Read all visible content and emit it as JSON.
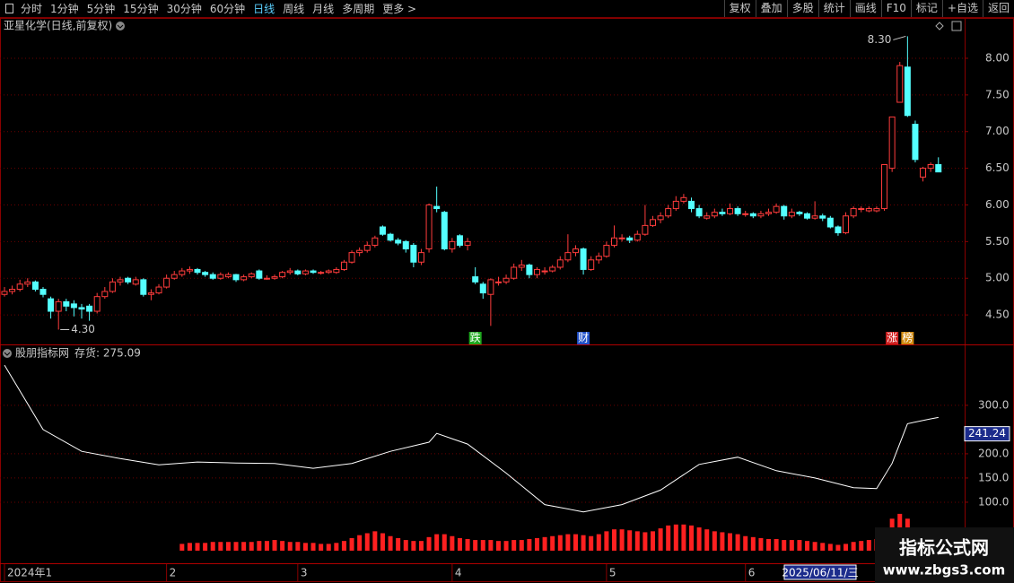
{
  "toolbar": {
    "left": [
      "分时",
      "1分钟",
      "5分钟",
      "15分钟",
      "30分钟",
      "60分钟",
      "日线",
      "周线",
      "月线",
      "多周期",
      "更多 >"
    ],
    "active_index": 6,
    "right": [
      "复权",
      "叠加",
      "多股",
      "统计",
      "画线",
      "F10",
      "标记",
      "+自选",
      "返回"
    ]
  },
  "chart_data": [
    {
      "type": "candlestick",
      "title": "亚星化学(日线,前复权)",
      "up_color": "#ff3c3c",
      "down_color": "#54ffff",
      "candles": [
        [
          4.78,
          4.88,
          4.75,
          4.82
        ],
        [
          4.82,
          4.9,
          4.78,
          4.85
        ],
        [
          4.85,
          4.98,
          4.82,
          4.92
        ],
        [
          4.92,
          5.0,
          4.88,
          4.95
        ],
        [
          4.95,
          4.97,
          4.82,
          4.85
        ],
        [
          4.85,
          4.88,
          4.74,
          4.78
        ],
        [
          4.72,
          4.75,
          4.45,
          4.55
        ],
        [
          4.55,
          4.72,
          4.3,
          4.68
        ],
        [
          4.68,
          4.72,
          4.55,
          4.62
        ],
        [
          4.65,
          4.7,
          4.48,
          4.6
        ],
        [
          4.6,
          4.65,
          4.45,
          4.58
        ],
        [
          4.62,
          4.65,
          4.42,
          4.55
        ],
        [
          4.55,
          4.8,
          4.52,
          4.75
        ],
        [
          4.75,
          4.88,
          4.72,
          4.82
        ],
        [
          4.82,
          5.0,
          4.8,
          4.95
        ],
        [
          4.95,
          5.02,
          4.9,
          4.98
        ],
        [
          5.0,
          5.02,
          4.92,
          4.95
        ],
        [
          4.92,
          5.02,
          4.9,
          4.98
        ],
        [
          4.98,
          5.0,
          4.75,
          4.78
        ],
        [
          4.78,
          4.85,
          4.7,
          4.8
        ],
        [
          4.8,
          4.92,
          4.78,
          4.88
        ],
        [
          4.88,
          5.05,
          4.86,
          5.0
        ],
        [
          5.0,
          5.1,
          4.98,
          5.05
        ],
        [
          5.05,
          5.14,
          5.02,
          5.1
        ],
        [
          5.1,
          5.16,
          5.06,
          5.12
        ],
        [
          5.12,
          5.14,
          5.05,
          5.08
        ],
        [
          5.08,
          5.1,
          5.02,
          5.05
        ],
        [
          5.05,
          5.08,
          4.98,
          5.0
        ],
        [
          5.0,
          5.08,
          4.98,
          5.05
        ],
        [
          5.02,
          5.08,
          5.0,
          5.05
        ],
        [
          5.05,
          5.06,
          4.95,
          4.98
        ],
        [
          4.98,
          5.05,
          4.96,
          5.02
        ],
        [
          5.02,
          5.08,
          5.0,
          5.06
        ],
        [
          5.1,
          5.12,
          4.98,
          5.0
        ],
        [
          5.0,
          5.04,
          4.98,
          5.0
        ],
        [
          5.0,
          5.05,
          4.98,
          5.02
        ],
        [
          5.02,
          5.1,
          5.0,
          5.08
        ],
        [
          5.08,
          5.14,
          5.05,
          5.1
        ],
        [
          5.1,
          5.12,
          5.04,
          5.06
        ],
        [
          5.06,
          5.12,
          5.04,
          5.1
        ],
        [
          5.1,
          5.12,
          5.06,
          5.08
        ],
        [
          5.08,
          5.1,
          5.05,
          5.08
        ],
        [
          5.08,
          5.12,
          5.06,
          5.1
        ],
        [
          5.08,
          5.15,
          5.06,
          5.12
        ],
        [
          5.12,
          5.25,
          5.1,
          5.22
        ],
        [
          5.22,
          5.38,
          5.2,
          5.35
        ],
        [
          5.35,
          5.42,
          5.3,
          5.38
        ],
        [
          5.38,
          5.5,
          5.35,
          5.45
        ],
        [
          5.45,
          5.58,
          5.42,
          5.55
        ],
        [
          5.7,
          5.72,
          5.58,
          5.6
        ],
        [
          5.6,
          5.62,
          5.5,
          5.52
        ],
        [
          5.52,
          5.55,
          5.45,
          5.48
        ],
        [
          5.5,
          5.52,
          5.35,
          5.4
        ],
        [
          5.45,
          5.48,
          5.15,
          5.22
        ],
        [
          5.22,
          5.4,
          5.18,
          5.35
        ],
        [
          5.4,
          6.02,
          5.35,
          6.0
        ],
        [
          5.98,
          6.25,
          5.9,
          5.95
        ],
        [
          5.9,
          5.92,
          5.38,
          5.4
        ],
        [
          5.4,
          5.55,
          5.35,
          5.5
        ],
        [
          5.58,
          5.6,
          5.42,
          5.45
        ],
        [
          5.45,
          5.55,
          5.38,
          5.5
        ],
        [
          5.02,
          5.15,
          4.92,
          4.95
        ],
        [
          4.92,
          4.95,
          4.72,
          4.8
        ],
        [
          4.78,
          5.0,
          4.35,
          4.98
        ],
        [
          4.95,
          5.02,
          4.9,
          4.95
        ],
        [
          4.95,
          5.05,
          4.92,
          5.0
        ],
        [
          5.0,
          5.2,
          4.98,
          5.15
        ],
        [
          5.15,
          5.25,
          5.1,
          5.18
        ],
        [
          5.18,
          5.2,
          5.0,
          5.05
        ],
        [
          5.05,
          5.15,
          5.0,
          5.12
        ],
        [
          5.1,
          5.15,
          5.05,
          5.1
        ],
        [
          5.1,
          5.18,
          5.08,
          5.15
        ],
        [
          5.15,
          5.3,
          5.12,
          5.25
        ],
        [
          5.25,
          5.6,
          5.22,
          5.35
        ],
        [
          5.35,
          5.45,
          5.3,
          5.4
        ],
        [
          5.4,
          5.42,
          5.05,
          5.12
        ],
        [
          5.12,
          5.3,
          5.1,
          5.25
        ],
        [
          5.25,
          5.35,
          5.2,
          5.3
        ],
        [
          5.3,
          5.5,
          5.28,
          5.45
        ],
        [
          5.45,
          5.72,
          5.42,
          5.55
        ],
        [
          5.55,
          5.6,
          5.5,
          5.55
        ],
        [
          5.55,
          5.58,
          5.48,
          5.52
        ],
        [
          5.52,
          5.65,
          5.5,
          5.6
        ],
        [
          5.6,
          6.0,
          5.58,
          5.72
        ],
        [
          5.72,
          5.85,
          5.7,
          5.8
        ],
        [
          5.8,
          5.9,
          5.75,
          5.85
        ],
        [
          5.85,
          6.0,
          5.82,
          5.95
        ],
        [
          5.95,
          6.12,
          5.92,
          6.05
        ],
        [
          6.05,
          6.15,
          6.02,
          6.1
        ],
        [
          6.05,
          6.1,
          5.9,
          5.95
        ],
        [
          5.95,
          6.0,
          5.82,
          5.85
        ],
        [
          5.82,
          5.9,
          5.8,
          5.85
        ],
        [
          5.85,
          5.95,
          5.82,
          5.9
        ],
        [
          5.9,
          5.95,
          5.85,
          5.88
        ],
        [
          5.88,
          6.02,
          5.86,
          5.95
        ],
        [
          5.95,
          5.98,
          5.85,
          5.88
        ],
        [
          5.88,
          5.92,
          5.84,
          5.88
        ],
        [
          5.88,
          5.9,
          5.82,
          5.85
        ],
        [
          5.85,
          5.92,
          5.82,
          5.88
        ],
        [
          5.88,
          5.95,
          5.85,
          5.9
        ],
        [
          5.9,
          6.02,
          5.88,
          5.98
        ],
        [
          5.98,
          6.0,
          5.8,
          5.85
        ],
        [
          5.85,
          5.95,
          5.82,
          5.9
        ],
        [
          5.9,
          5.92,
          5.85,
          5.88
        ],
        [
          5.88,
          5.9,
          5.8,
          5.82
        ],
        [
          5.82,
          6.05,
          5.8,
          5.85
        ],
        [
          5.85,
          5.88,
          5.78,
          5.82
        ],
        [
          5.82,
          5.85,
          5.68,
          5.7
        ],
        [
          5.7,
          5.72,
          5.58,
          5.62
        ],
        [
          5.62,
          5.9,
          5.6,
          5.85
        ],
        [
          5.85,
          5.98,
          5.82,
          5.95
        ],
        [
          5.95,
          5.98,
          5.9,
          5.95
        ],
        [
          5.92,
          5.98,
          5.9,
          5.95
        ],
        [
          5.92,
          5.98,
          5.9,
          5.95
        ],
        [
          5.95,
          6.55,
          5.92,
          6.55
        ],
        [
          6.5,
          7.2,
          6.45,
          7.2
        ],
        [
          7.4,
          7.95,
          7.4,
          7.9
        ],
        [
          7.88,
          8.3,
          7.2,
          7.22
        ],
        [
          7.1,
          7.15,
          6.58,
          6.62
        ],
        [
          6.38,
          6.52,
          6.32,
          6.5
        ],
        [
          6.5,
          6.58,
          6.45,
          6.55
        ],
        [
          6.55,
          6.65,
          6.45,
          6.45
        ]
      ],
      "xlim": [
        -0.58,
        124.4
      ],
      "xticks": [
        {
          "value": 0,
          "label": "2024年1"
        },
        {
          "value": 21,
          "label": "2"
        },
        {
          "value": 38,
          "label": "3"
        },
        {
          "value": 58,
          "label": "4"
        },
        {
          "value": 78,
          "label": "5"
        },
        {
          "value": 96,
          "label": "6"
        }
      ],
      "ylim": [
        4.11,
        8.33
      ],
      "yticks": [
        {
          "value": 4.5,
          "label": "4.50"
        },
        {
          "value": 5,
          "label": "5.00"
        },
        {
          "value": 5.5,
          "label": "5.50"
        },
        {
          "value": 6,
          "label": "6.00"
        },
        {
          "value": 6.5,
          "label": "6.50"
        },
        {
          "value": 7,
          "label": "7.00"
        },
        {
          "value": 7.5,
          "label": "7.50"
        },
        {
          "value": 8,
          "label": "8.00"
        }
      ],
      "grid": true,
      "annotations": [
        {
          "x": 7,
          "y": 4.3,
          "label": "4.30"
        },
        {
          "x": 117,
          "y": 8.3,
          "label": "8.30"
        }
      ],
      "markers": [
        {
          "x": 61,
          "label": "跌",
          "color": "#1fa81f"
        },
        {
          "x": 75,
          "label": "财",
          "color": "#2050c8"
        },
        {
          "x": 115,
          "label": "涨",
          "color": "#d02020"
        },
        {
          "x": 117,
          "label": "榜",
          "color": "#d08a10"
        }
      ]
    },
    {
      "type": "line",
      "title": "股朋指标网",
      "legend": "存货: 275.09",
      "line": {
        "color": "#ffffff",
        "x": [
          0,
          5,
          10,
          15,
          20,
          25,
          30,
          35,
          40,
          45,
          50,
          55,
          56,
          60,
          65,
          70,
          75,
          80,
          85,
          90,
          95,
          100,
          105,
          110,
          113,
          115,
          117,
          120,
          121
        ],
        "values": [
          383,
          250,
          205,
          190,
          177,
          183,
          181,
          180,
          170,
          180,
          205,
          224,
          242,
          220,
          160,
          95,
          80,
          95,
          125,
          178,
          193,
          165,
          150,
          130,
          128,
          180,
          262,
          272,
          275.09
        ]
      },
      "bars": {
        "color": "#ff2020",
        "values": [
          null,
          null,
          null,
          null,
          null,
          null,
          null,
          null,
          null,
          null,
          null,
          null,
          null,
          null,
          null,
          null,
          null,
          null,
          null,
          null,
          null,
          null,
          null,
          14,
          16,
          16,
          16,
          18,
          18,
          18,
          18,
          18,
          18,
          20,
          20,
          22,
          20,
          18,
          18,
          16,
          16,
          14,
          14,
          16,
          20,
          26,
          32,
          36,
          40,
          36,
          30,
          26,
          22,
          20,
          20,
          28,
          34,
          34,
          30,
          26,
          24,
          22,
          22,
          22,
          20,
          20,
          22,
          22,
          24,
          26,
          28,
          30,
          32,
          34,
          34,
          32,
          30,
          34,
          40,
          44,
          44,
          42,
          40,
          38,
          40,
          46,
          52,
          54,
          54,
          52,
          48,
          44,
          40,
          38,
          36,
          34,
          30,
          28,
          26,
          24,
          24,
          22,
          22,
          22,
          20,
          18,
          16,
          14,
          12,
          14,
          18,
          20,
          22,
          24,
          44,
          66,
          76,
          66,
          48,
          30,
          18,
          8
        ]
      },
      "ylim": [
        -26,
        422
      ],
      "yticks": [
        {
          "value": 100,
          "label": "100.0"
        },
        {
          "value": 150,
          "label": "150.0"
        },
        {
          "value": 200,
          "label": "200.0"
        },
        {
          "value": 300,
          "label": "300.0"
        }
      ],
      "grid": true,
      "cursor_value": 241.24,
      "cursor_date": "2025/06/11/三"
    }
  ],
  "watermark": {
    "title": "指标公式网",
    "url": "www.zbgs3.com"
  }
}
